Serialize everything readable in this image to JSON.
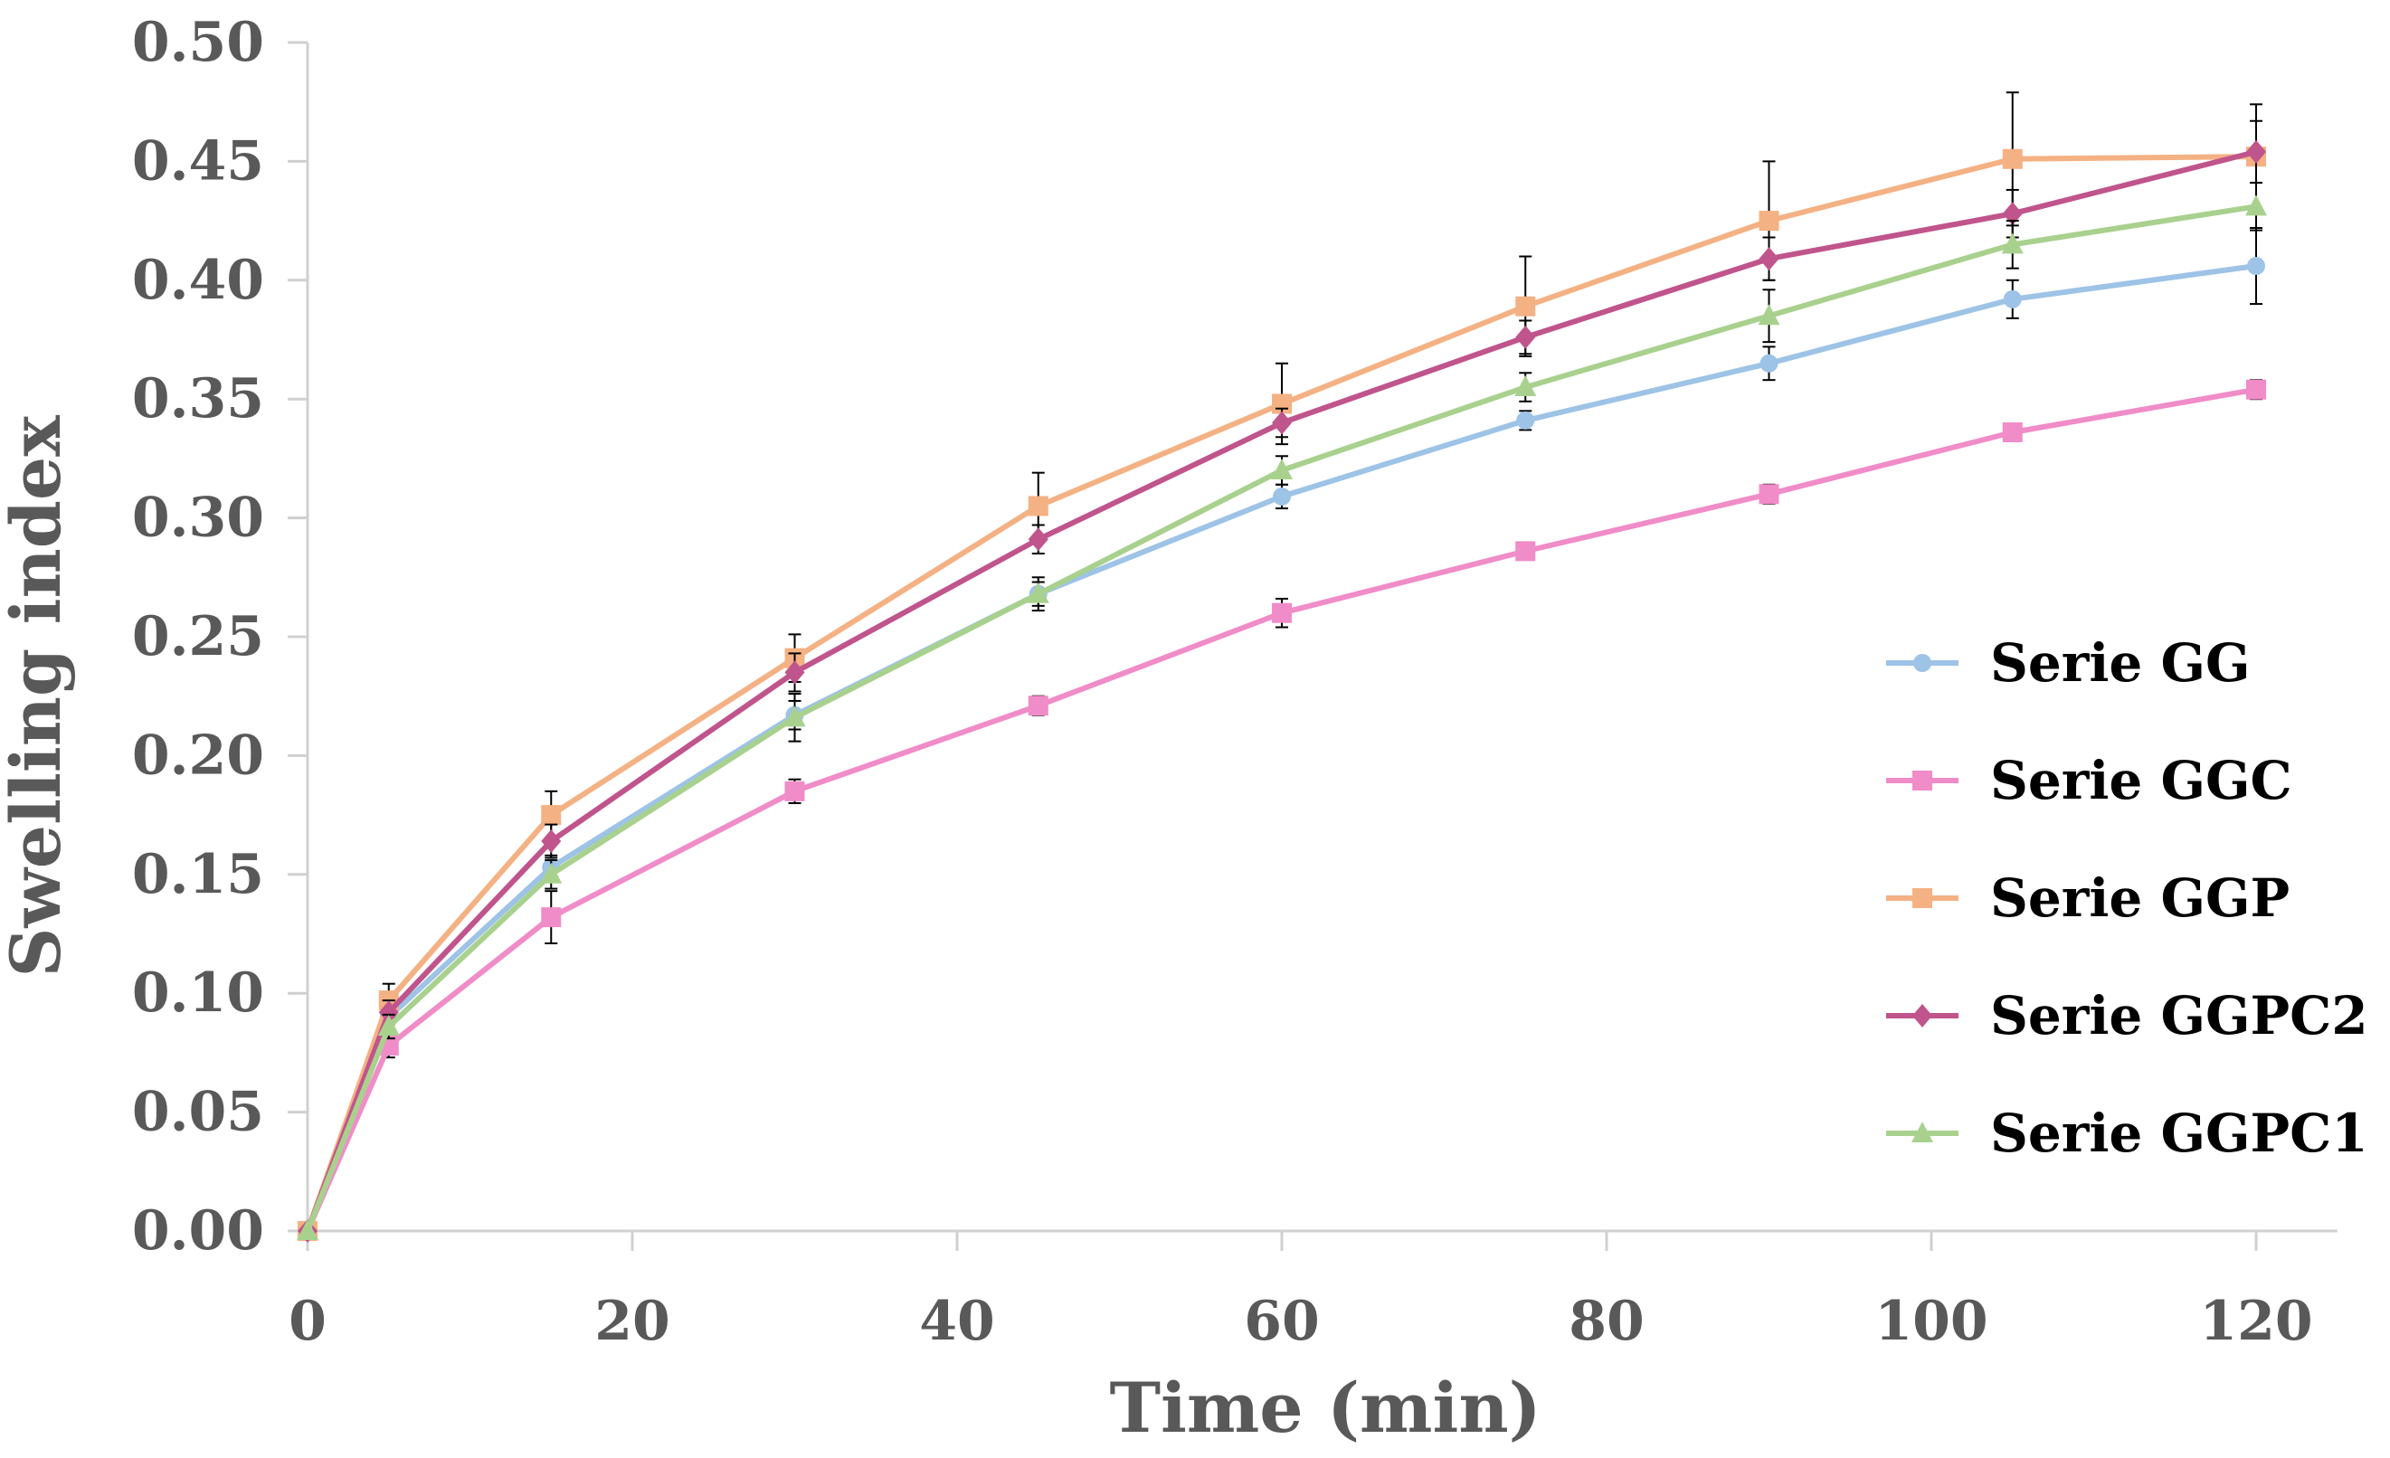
{
  "chart_data": {
    "type": "line",
    "title": "",
    "xlabel": "Time (min)",
    "ylabel": "Swelling index",
    "xlim": [
      0,
      125
    ],
    "ylim": [
      0,
      0.5
    ],
    "x_ticks": [
      0,
      20,
      40,
      60,
      80,
      100,
      120
    ],
    "x_tick_labels": [
      "0",
      "20",
      "40",
      "60",
      "80",
      "100",
      "120"
    ],
    "y_ticks": [
      0,
      0.05,
      0.1,
      0.15,
      0.2,
      0.25,
      0.3,
      0.35,
      0.4,
      0.45,
      0.5
    ],
    "y_tick_labels": [
      "0.00",
      "0.05",
      "0.10",
      "0.15",
      "0.20",
      "0.25",
      "0.30",
      "0.35",
      "0.40",
      "0.45",
      "0.50"
    ],
    "grid": false,
    "legend_position": "right",
    "x": [
      0,
      5,
      15,
      30,
      45,
      60,
      75,
      90,
      105,
      120
    ],
    "series": [
      {
        "name": "Serie GG",
        "color": "#9DC3E6",
        "marker": "circle",
        "values": [
          0.0,
          0.09,
          0.153,
          0.217,
          0.268,
          0.309,
          0.341,
          0.365,
          0.392,
          0.406
        ],
        "errors": [
          0,
          0.005,
          0.005,
          0.006,
          0.005,
          0.005,
          0.004,
          0.007,
          0.008,
          0.016
        ]
      },
      {
        "name": "Serie GGC",
        "color": "#F08CC8",
        "marker": "square",
        "values": [
          0.0,
          0.078,
          0.132,
          0.185,
          0.221,
          0.26,
          0.286,
          0.31,
          0.336,
          0.354
        ],
        "errors": [
          0,
          0.005,
          0.011,
          0.005,
          0.004,
          0.006,
          0.003,
          0.004,
          0.003,
          0.004
        ]
      },
      {
        "name": "Serie GGP",
        "color": "#F4B183",
        "marker": "square",
        "values": [
          0.0,
          0.097,
          0.175,
          0.241,
          0.305,
          0.348,
          0.389,
          0.425,
          0.451,
          0.452
        ],
        "errors": [
          0,
          0.007,
          0.01,
          0.01,
          0.014,
          0.017,
          0.021,
          0.025,
          0.028,
          0.022
        ]
      },
      {
        "name": "Serie GGPC2",
        "color": "#C0548C",
        "marker": "diamond",
        "values": [
          0.0,
          0.092,
          0.164,
          0.235,
          0.291,
          0.34,
          0.376,
          0.409,
          0.428,
          0.454
        ],
        "errors": [
          0,
          0.005,
          0.007,
          0.008,
          0.006,
          0.006,
          0.007,
          0.009,
          0.01,
          0.013
        ]
      },
      {
        "name": "Serie GGPC1",
        "color": "#A9D18E",
        "marker": "triangle",
        "values": [
          0.0,
          0.086,
          0.15,
          0.216,
          0.268,
          0.32,
          0.355,
          0.385,
          0.415,
          0.431
        ],
        "errors": [
          0,
          0.005,
          0.006,
          0.01,
          0.007,
          0.006,
          0.006,
          0.011,
          0.01,
          0.01
        ]
      }
    ]
  }
}
